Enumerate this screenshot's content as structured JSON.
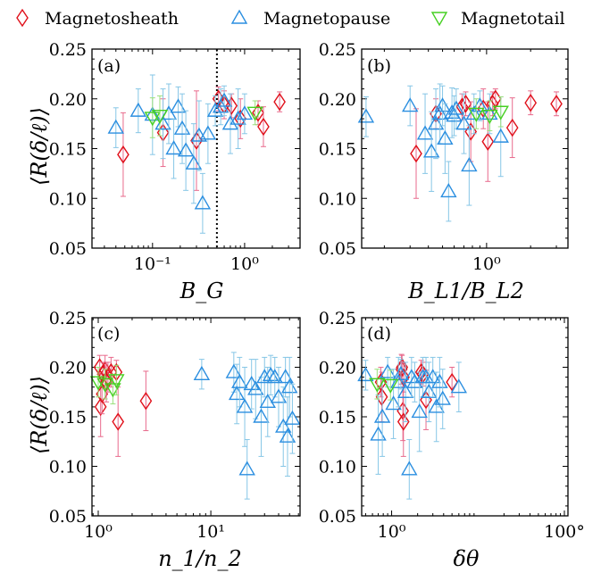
{
  "legend": [
    {
      "label": "Magnetosheath",
      "marker": "diamond",
      "color": "#e0101a"
    },
    {
      "label": "Magnetopause",
      "marker": "triangle-up",
      "color": "#2a8ee0"
    },
    {
      "label": "Magnetotail",
      "marker": "triangle-down",
      "color": "#45d021"
    }
  ],
  "colors": {
    "sheath": "#e0101a",
    "sheath_err": "#e86a8c",
    "pause": "#2a8ee0",
    "pause_err": "#86c6e6",
    "tail": "#45d021",
    "tail_err": "#9be07c"
  },
  "chart_data": [
    {
      "type": "scatter",
      "panel": "(a)",
      "xlabel": "B_G",
      "ylabel": "⟨R(δ/ℓ)⟩",
      "xscale": "log",
      "xlim": [
        0.022,
        4.0
      ],
      "ylim": [
        0.05,
        0.25
      ],
      "xticks": [
        {
          "v": 0.1,
          "label": "10⁻¹"
        },
        {
          "v": 1,
          "label": "10⁰"
        }
      ],
      "yticks": [
        0.05,
        0.1,
        0.15,
        0.2,
        0.25
      ],
      "vline": 0.5,
      "series": [
        {
          "name": "Magnetosheath",
          "points": [
            [
              0.048,
              0.144,
              0.042
            ],
            [
              0.13,
              0.166,
              0.034
            ],
            [
              0.3,
              0.158,
              0.05
            ],
            [
              0.52,
              0.2,
              0.012
            ],
            [
              0.6,
              0.194,
              0.014
            ],
            [
              0.72,
              0.193,
              0.012
            ],
            [
              0.9,
              0.18,
              0.02
            ],
            [
              1.4,
              0.186,
              0.012
            ],
            [
              1.6,
              0.172,
              0.02
            ],
            [
              2.4,
              0.197,
              0.01
            ]
          ]
        },
        {
          "name": "Magnetopause",
          "points": [
            [
              0.04,
              0.171,
              0.02
            ],
            [
              0.07,
              0.188,
              0.022
            ],
            [
              0.1,
              0.184,
              0.04
            ],
            [
              0.13,
              0.175,
              0.035
            ],
            [
              0.15,
              0.185,
              0.03
            ],
            [
              0.17,
              0.15,
              0.03
            ],
            [
              0.19,
              0.192,
              0.02
            ],
            [
              0.21,
              0.17,
              0.035
            ],
            [
              0.23,
              0.148,
              0.04
            ],
            [
              0.28,
              0.135,
              0.04
            ],
            [
              0.32,
              0.163,
              0.035
            ],
            [
              0.35,
              0.095,
              0.03
            ],
            [
              0.4,
              0.165,
              0.03
            ],
            [
              0.48,
              0.188,
              0.015
            ],
            [
              0.55,
              0.192,
              0.018
            ],
            [
              0.6,
              0.198,
              0.015
            ],
            [
              0.7,
              0.175,
              0.03
            ],
            [
              0.85,
              0.18,
              0.03
            ],
            [
              1.0,
              0.185,
              0.02
            ]
          ]
        },
        {
          "name": "Magnetotail",
          "points": [
            [
              0.1,
              0.181,
              0.02
            ],
            [
              0.12,
              0.183,
              0.02
            ],
            [
              1.3,
              0.186,
              0.012
            ]
          ]
        }
      ]
    },
    {
      "type": "scatter",
      "panel": "(b)",
      "xlabel": "B_L1/B_L2",
      "ylabel": "",
      "xscale": "log",
      "xlim": [
        0.14,
        3.6
      ],
      "ylim": [
        0.05,
        0.25
      ],
      "xticks": [
        {
          "v": 1,
          "label": "10⁰"
        }
      ],
      "yticks": [
        0.05,
        0.1,
        0.15,
        0.2,
        0.25
      ],
      "series": [
        {
          "name": "Magnetosheath",
          "points": [
            [
              0.33,
              0.145,
              0.045
            ],
            [
              0.45,
              0.185,
              0.015
            ],
            [
              0.68,
              0.192,
              0.013
            ],
            [
              0.72,
              0.195,
              0.012
            ],
            [
              0.78,
              0.167,
              0.03
            ],
            [
              0.95,
              0.19,
              0.02
            ],
            [
              1.02,
              0.157,
              0.04
            ],
            [
              1.1,
              0.195,
              0.012
            ],
            [
              1.15,
              0.2,
              0.01
            ],
            [
              1.5,
              0.171,
              0.03
            ],
            [
              2.0,
              0.196,
              0.012
            ],
            [
              3.0,
              0.195,
              0.012
            ]
          ]
        },
        {
          "name": "Magnetopause",
          "points": [
            [
              0.15,
              0.182,
              0.02
            ],
            [
              0.3,
              0.193,
              0.02
            ],
            [
              0.38,
              0.165,
              0.04
            ],
            [
              0.42,
              0.147,
              0.04
            ],
            [
              0.45,
              0.175,
              0.035
            ],
            [
              0.48,
              0.185,
              0.03
            ],
            [
              0.5,
              0.193,
              0.02
            ],
            [
              0.52,
              0.16,
              0.035
            ],
            [
              0.55,
              0.107,
              0.03
            ],
            [
              0.58,
              0.186,
              0.025
            ],
            [
              0.6,
              0.183,
              0.02
            ],
            [
              0.62,
              0.19,
              0.02
            ],
            [
              0.7,
              0.175,
              0.03
            ],
            [
              0.76,
              0.133,
              0.04
            ],
            [
              0.82,
              0.185,
              0.02
            ],
            [
              0.9,
              0.193,
              0.015
            ],
            [
              1.05,
              0.185,
              0.02
            ],
            [
              1.25,
              0.162,
              0.04
            ]
          ]
        },
        {
          "name": "Magnetotail",
          "points": [
            [
              0.85,
              0.185,
              0.015
            ],
            [
              1.05,
              0.183,
              0.015
            ],
            [
              1.25,
              0.187,
              0.015
            ]
          ]
        }
      ]
    },
    {
      "type": "scatter",
      "panel": "(c)",
      "xlabel": "n_1/n_2",
      "ylabel": "⟨R(δ/ℓ)⟩",
      "xscale": "log",
      "xlim": [
        0.88,
        62
      ],
      "ylim": [
        0.05,
        0.25
      ],
      "xticks": [
        {
          "v": 1,
          "label": "10⁰"
        },
        {
          "v": 10,
          "label": "10¹"
        }
      ],
      "yticks": [
        0.05,
        0.1,
        0.15,
        0.2,
        0.25
      ],
      "series": [
        {
          "name": "Magnetosheath",
          "points": [
            [
              1.03,
              0.2,
              0.012
            ],
            [
              1.05,
              0.16,
              0.03
            ],
            [
              1.08,
              0.173,
              0.02
            ],
            [
              1.1,
              0.193,
              0.012
            ],
            [
              1.15,
              0.197,
              0.015
            ],
            [
              1.18,
              0.185,
              0.02
            ],
            [
              1.22,
              0.19,
              0.015
            ],
            [
              1.3,
              0.195,
              0.015
            ],
            [
              1.45,
              0.195,
              0.012
            ],
            [
              1.5,
              0.145,
              0.035
            ],
            [
              2.65,
              0.166,
              0.03
            ]
          ]
        },
        {
          "name": "Magnetopause",
          "points": [
            [
              8.3,
              0.193,
              0.015
            ],
            [
              16,
              0.195,
              0.02
            ],
            [
              17,
              0.173,
              0.03
            ],
            [
              18,
              0.185,
              0.025
            ],
            [
              20,
              0.16,
              0.04
            ],
            [
              21,
              0.097,
              0.03
            ],
            [
              23,
              0.183,
              0.025
            ],
            [
              25,
              0.178,
              0.03
            ],
            [
              28,
              0.15,
              0.04
            ],
            [
              30,
              0.19,
              0.02
            ],
            [
              32,
              0.165,
              0.035
            ],
            [
              34,
              0.192,
              0.02
            ],
            [
              37,
              0.19,
              0.02
            ],
            [
              40,
              0.17,
              0.03
            ],
            [
              44,
              0.14,
              0.04
            ],
            [
              46,
              0.19,
              0.02
            ],
            [
              48,
              0.13,
              0.04
            ],
            [
              50,
              0.18,
              0.03
            ],
            [
              53,
              0.148,
              0.035
            ]
          ]
        },
        {
          "name": "Magnetotail",
          "points": [
            [
              1.0,
              0.185,
              0.015
            ],
            [
              1.15,
              0.183,
              0.015
            ],
            [
              1.35,
              0.178,
              0.015
            ],
            [
              1.45,
              0.187,
              0.015
            ]
          ]
        }
      ]
    },
    {
      "type": "scatter",
      "panel": "(d)",
      "xlabel": "δθ",
      "ylabel": "",
      "xscale": "log",
      "xlim": [
        0.45,
        110
      ],
      "ylim": [
        0.05,
        0.25
      ],
      "xticks": [
        {
          "v": 1,
          "label": "10⁰"
        },
        {
          "v": 100,
          "label": "100°"
        }
      ],
      "yticks": [
        0.05,
        0.1,
        0.15,
        0.2,
        0.25
      ],
      "series": [
        {
          "name": "Magnetosheath",
          "points": [
            [
              0.75,
              0.185,
              0.015
            ],
            [
              0.77,
              0.17,
              0.025
            ],
            [
              1.3,
              0.198,
              0.015
            ],
            [
              1.32,
              0.2,
              0.012
            ],
            [
              1.35,
              0.156,
              0.03
            ],
            [
              1.37,
              0.145,
              0.035
            ],
            [
              1.38,
              0.19,
              0.015
            ],
            [
              2.2,
              0.195,
              0.012
            ],
            [
              2.3,
              0.193,
              0.012
            ],
            [
              2.5,
              0.167,
              0.03
            ],
            [
              5.0,
              0.185,
              0.015
            ]
          ]
        },
        {
          "name": "Magnetopause",
          "points": [
            [
              0.5,
              0.192,
              0.015
            ],
            [
              0.7,
              0.132,
              0.04
            ],
            [
              0.78,
              0.15,
              0.04
            ],
            [
              0.9,
              0.195,
              0.015
            ],
            [
              1.05,
              0.163,
              0.035
            ],
            [
              1.2,
              0.185,
              0.025
            ],
            [
              1.28,
              0.193,
              0.015
            ],
            [
              1.45,
              0.175,
              0.03
            ],
            [
              1.6,
              0.097,
              0.03
            ],
            [
              1.7,
              0.19,
              0.02
            ],
            [
              1.85,
              0.185,
              0.02
            ],
            [
              2.1,
              0.155,
              0.04
            ],
            [
              2.3,
              0.19,
              0.02
            ],
            [
              2.5,
              0.19,
              0.02
            ],
            [
              2.7,
              0.175,
              0.03
            ],
            [
              3.0,
              0.19,
              0.02
            ],
            [
              3.3,
              0.16,
              0.035
            ],
            [
              3.6,
              0.185,
              0.025
            ],
            [
              3.9,
              0.168,
              0.03
            ],
            [
              6.0,
              0.18,
              0.025
            ]
          ]
        },
        {
          "name": "Magnetotail",
          "points": [
            [
              0.68,
              0.183,
              0.015
            ],
            [
              0.97,
              0.182,
              0.015
            ]
          ]
        }
      ]
    }
  ]
}
